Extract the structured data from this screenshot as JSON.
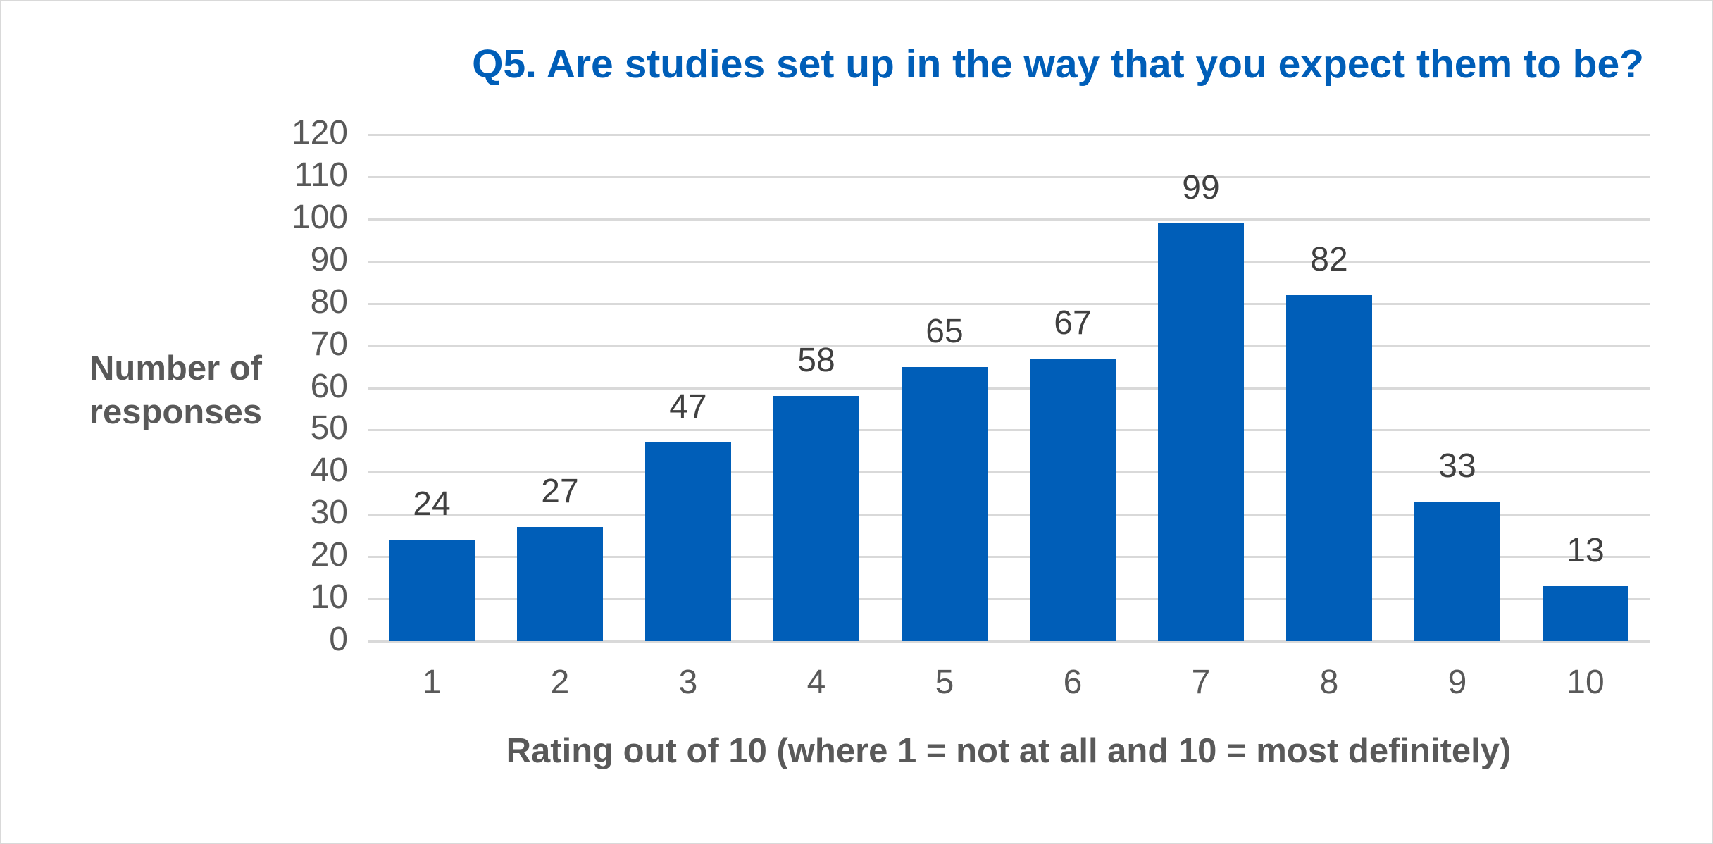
{
  "chart_data": {
    "type": "bar",
    "title": "Q5. Are studies set up in the way that you expect them to be?",
    "xlabel": "Rating out of 10 (where 1 = not at all and 10 = most definitely)",
    "ylabel": "Number of responses",
    "categories": [
      "1",
      "2",
      "3",
      "4",
      "5",
      "6",
      "7",
      "8",
      "9",
      "10"
    ],
    "values": [
      24,
      27,
      47,
      58,
      65,
      67,
      99,
      82,
      33,
      13
    ],
    "ylim": [
      0,
      120
    ],
    "yticks": [
      "0",
      "10",
      "20",
      "30",
      "40",
      "50",
      "60",
      "70",
      "80",
      "90",
      "100",
      "110",
      "120"
    ],
    "grid": true,
    "legend": false,
    "bar_color": "#005EB8",
    "title_color": "#005EB8"
  }
}
